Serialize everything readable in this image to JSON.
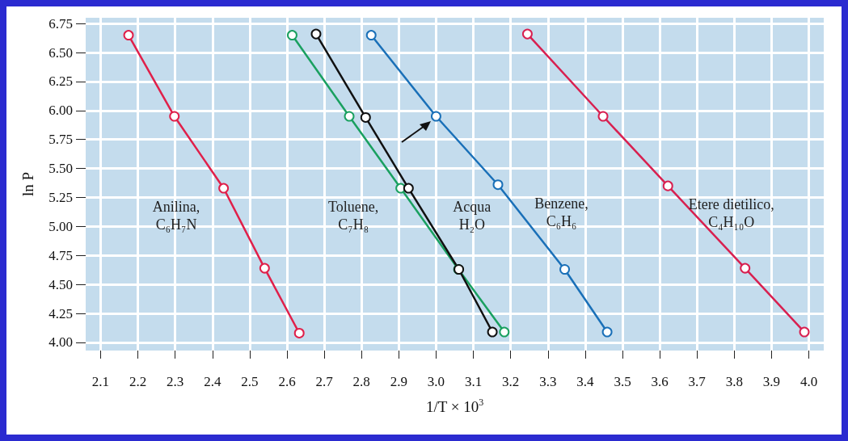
{
  "chart_data": {
    "type": "line",
    "xlabel": "1/T × 10$^{3}$",
    "ylabel": "ln P",
    "series": [
      {
        "name": "Anilina,\nC₆H₇N",
        "color": "#e0204a",
        "x": [
          2.175,
          2.298,
          2.43,
          2.54,
          2.633
        ],
        "values": [
          6.65,
          5.95,
          5.33,
          4.64,
          4.08
        ]
      },
      {
        "name": "Toluene,\nC₇H₈",
        "color": "#1aa060",
        "x": [
          2.614,
          2.767,
          2.905,
          3.06,
          3.183
        ],
        "values": [
          6.65,
          5.95,
          5.33,
          4.63,
          4.09
        ]
      },
      {
        "name": "Acqua\nH₂O",
        "color": "#111111",
        "x": [
          2.678,
          2.811,
          2.926,
          3.061,
          3.151
        ],
        "values": [
          6.66,
          5.94,
          5.33,
          4.63,
          4.09
        ]
      },
      {
        "name": "Benzene,\nC₆H₆",
        "color": "#1a70b8",
        "x": [
          2.826,
          3.0,
          3.166,
          3.345,
          3.459
        ],
        "values": [
          6.65,
          5.95,
          5.36,
          4.63,
          4.09
        ]
      },
      {
        "name": "Etere dietilico,\nC₄H₁₀O",
        "color": "#d82050",
        "x": [
          3.245,
          3.448,
          3.622,
          3.829,
          3.988
        ],
        "values": [
          6.66,
          5.95,
          5.35,
          4.64,
          4.09
        ]
      }
    ],
    "xlim": [
      2.06,
      4.04
    ],
    "xticks": [
      {
        "value": 2.1,
        "label": "2.1"
      },
      {
        "value": 2.2,
        "label": "2.2"
      },
      {
        "value": 2.3,
        "label": "2.3"
      },
      {
        "value": 2.4,
        "label": "2.4"
      },
      {
        "value": 2.5,
        "label": "2.5"
      },
      {
        "value": 2.6,
        "label": "2.6"
      },
      {
        "value": 2.7,
        "label": "2.7"
      },
      {
        "value": 2.8,
        "label": "2.8"
      },
      {
        "value": 2.9,
        "label": "2.9"
      },
      {
        "value": 3.0,
        "label": "3.0"
      },
      {
        "value": 3.1,
        "label": "3.1"
      },
      {
        "value": 3.2,
        "label": "3.2"
      },
      {
        "value": 3.3,
        "label": "3.3"
      },
      {
        "value": 3.4,
        "label": "3.4"
      },
      {
        "value": 3.5,
        "label": "3.5"
      },
      {
        "value": 3.6,
        "label": "3.6"
      },
      {
        "value": 3.7,
        "label": "3.7"
      },
      {
        "value": 3.8,
        "label": "3.8"
      },
      {
        "value": 3.9,
        "label": "3.9"
      },
      {
        "value": 4.0,
        "label": "4.0"
      }
    ],
    "ylim": [
      3.93,
      6.8
    ],
    "yticks": [
      {
        "value": 4,
        "label": "4.00"
      },
      {
        "value": 4.25,
        "label": "4.25"
      },
      {
        "value": 4.5,
        "label": "4.50"
      },
      {
        "value": 4.75,
        "label": "4.75"
      },
      {
        "value": 5,
        "label": "5.00"
      },
      {
        "value": 5.25,
        "label": "5.25"
      },
      {
        "value": 5.5,
        "label": "5.50"
      },
      {
        "value": 5.75,
        "label": "5.75"
      },
      {
        "value": 6,
        "label": "6.00"
      },
      {
        "value": 6.25,
        "label": "6.25"
      },
      {
        "value": 6.5,
        "label": "6.50"
      },
      {
        "value": 6.75,
        "label": "6.75"
      }
    ],
    "grid": true,
    "legend": false,
    "marker": "circle",
    "line_style": "solid"
  }
}
